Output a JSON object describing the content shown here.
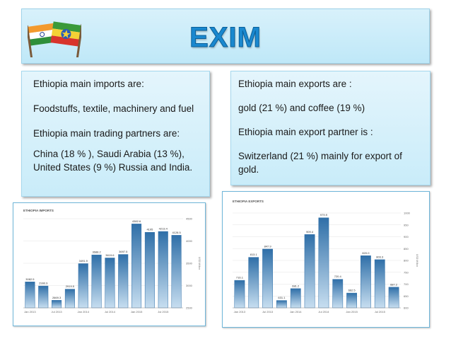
{
  "title": "EXIM",
  "imports_box": {
    "heading": "Ethiopia main imports are:",
    "items": "Foodstuffs, textile, machinery and fuel",
    "partners_heading": "Ethiopia main trading partners are:",
    "partners": "China (18 % ), Saudi Arabia (13 %), United States (9 %) Russia and India."
  },
  "exports_box": {
    "heading": "Ethiopia main exports are :",
    "items": "gold (21 %) and coffee (19 %)",
    "partner_heading": "Ethiopia main export partner is  :",
    "partner": "Switzerland (21 %) mainly for export of gold."
  },
  "colors": {
    "accent": "#1a88cf",
    "box_bg": "#c9ecf9",
    "bar": "#3f7fb5"
  },
  "chart_data": [
    {
      "type": "bar",
      "title": "ETHIOPIA IMPORTS",
      "values": [
        3082.5,
        2990.9,
        2669.3,
        2919.5,
        3491.9,
        3688.2,
        3619.6,
        3697.5,
        4382.6,
        4195,
        4213.4,
        4128.5
      ],
      "value_labels": [
        "3082.5",
        "2990.9",
        "2669.3",
        "2919.5",
        "3491.9",
        "3688.2",
        "3619.6",
        "3697.5",
        "4382.6",
        "4195",
        "4213.4",
        "4128.5"
      ],
      "x_tick_labels": [
        "Jan 2013",
        "Jul 2013",
        "Jan 2014",
        "Jul 2014",
        "Jan 2015",
        "Jul 2015"
      ],
      "ylim": [
        2500,
        4500
      ],
      "y_ticks": [
        2500,
        3000,
        3500,
        4000,
        4500
      ],
      "ylabel": "USD Million",
      "grid": true
    },
    {
      "type": "bar",
      "title": "ETHIOPIA EXPORTS",
      "values": [
        716.1,
        813.1,
        847.9,
        631.1,
        681.2,
        909.4,
        979.9,
        720.4,
        662.5,
        820,
        803.3,
        687.2
      ],
      "value_labels": [
        "716.1",
        "813.1",
        "847.9",
        "631.1",
        "681.2",
        "909.4",
        "979.9",
        "720.4",
        "662.5",
        "820.0",
        "803.3",
        "687.2"
      ],
      "x_tick_labels": [
        "Jan 2013",
        "Jul 2013",
        "Jan 2014",
        "Jul 2014",
        "Jan 2015",
        "Jul 2015"
      ],
      "ylim": [
        600,
        1000
      ],
      "y_ticks": [
        600,
        650,
        700,
        750,
        800,
        850,
        900,
        950,
        1000
      ],
      "ylabel": "USD Million",
      "grid": true
    }
  ]
}
